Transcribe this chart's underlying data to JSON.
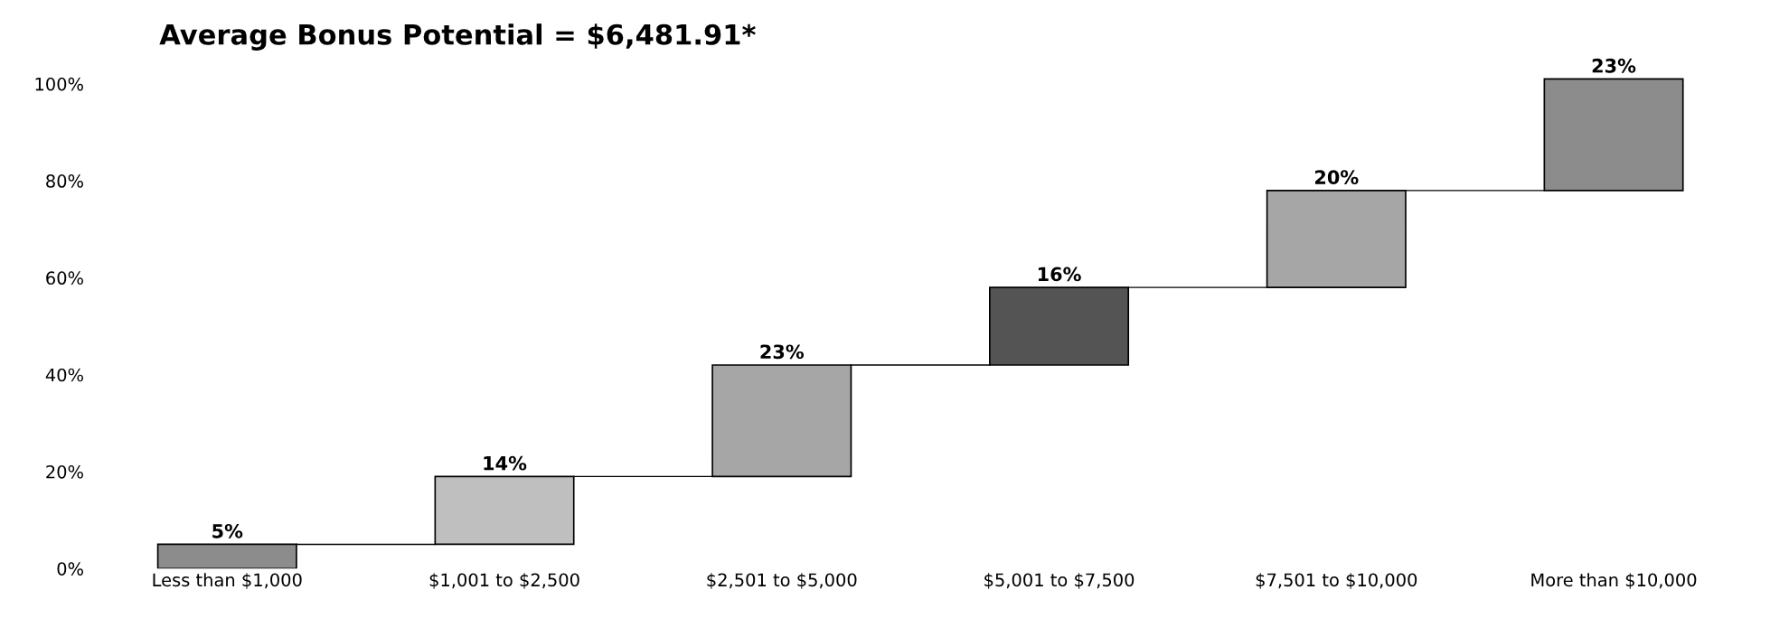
{
  "chart_data": {
    "type": "bar",
    "title": "Average Bonus Potential = $6,481.91*",
    "categories": [
      "Less than $1,000",
      "$1,001 to $2,500",
      "$2,501 to $5,000",
      "$5,001 to $7,500",
      "$7,501 to $10,000",
      "More than $10,000"
    ],
    "values": [
      5,
      14,
      23,
      16,
      20,
      23
    ],
    "base": [
      0,
      5,
      19,
      42,
      58,
      78
    ],
    "colors": [
      "#8c8c8c",
      "#bfbfbf",
      "#a6a6a6",
      "#545454",
      "#a6a6a6",
      "#8c8c8c"
    ],
    "value_labels": [
      "5%",
      "14%",
      "23%",
      "16%",
      "20%",
      "23%"
    ],
    "ylim": [
      0,
      102
    ],
    "yticks": [
      {
        "value": 0,
        "label": "0%"
      },
      {
        "value": 20,
        "label": "20%"
      },
      {
        "value": 40,
        "label": "40%"
      },
      {
        "value": 60,
        "label": "60%"
      },
      {
        "value": 80,
        "label": "80%"
      },
      {
        "value": 100,
        "label": "100%"
      }
    ],
    "grid": false,
    "legend": false
  }
}
